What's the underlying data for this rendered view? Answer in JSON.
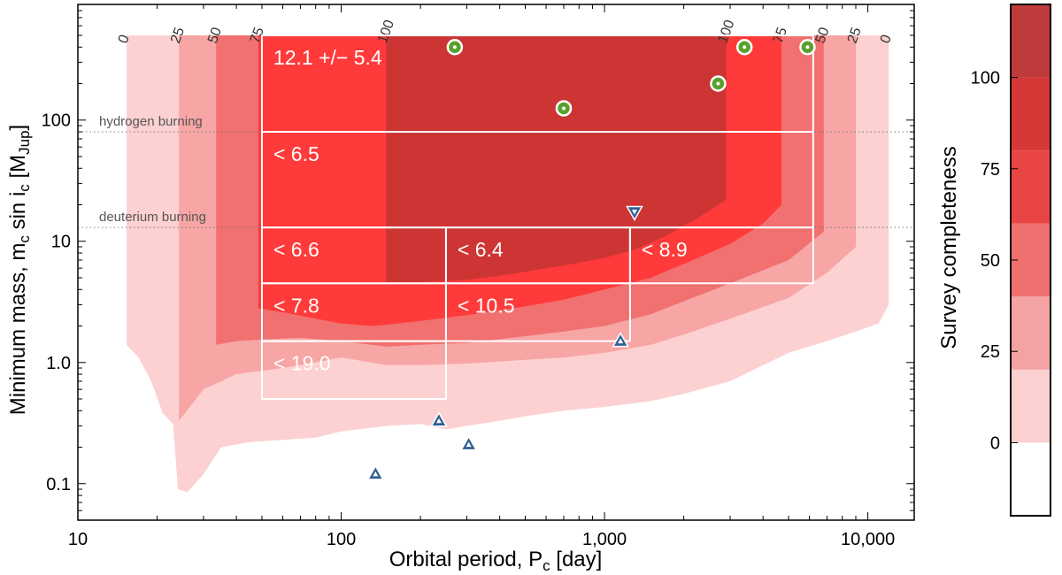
{
  "chart_data": {
    "type": "heatmap",
    "xlabel": "Orbital period, P",
    "xlabel_sub": "c",
    "xlabel_unit": " [day]",
    "ylabel": "Minimum mass, m",
    "ylabel_sub1": "c",
    "ylabel_mid": " sin i",
    "ylabel_sub2": "c",
    "ylabel_unit_open": " [M",
    "ylabel_unit_sub": "Jup",
    "ylabel_unit_close": "]",
    "x_scale": "log",
    "y_scale": "log",
    "xlim": [
      10,
      15000
    ],
    "ylim": [
      0.05,
      900
    ],
    "x_tick_labels": [
      "10",
      "100",
      "1,000",
      "10,000"
    ],
    "x_tick_values": [
      10,
      100,
      1000,
      10000
    ],
    "y_tick_labels": [
      "0.1",
      "1.0",
      "10",
      "100"
    ],
    "y_tick_values": [
      0.1,
      1,
      10,
      100
    ],
    "colorbar": {
      "label": "Survey completeness",
      "tick_labels": [
        "0",
        "25",
        "50",
        "75",
        "100"
      ],
      "tick_values": [
        0,
        25,
        50,
        75,
        100
      ],
      "range": [
        -20,
        120
      ],
      "bands": [
        {
          "from": -20,
          "to": 0,
          "color": "#ffffff"
        },
        {
          "from": 0,
          "to": 20,
          "color": "#fbd0d0"
        },
        {
          "from": 20,
          "to": 40,
          "color": "#f3a3a3"
        },
        {
          "from": 40,
          "to": 60,
          "color": "#f07070"
        },
        {
          "from": 60,
          "to": 80,
          "color": "#ea4545"
        },
        {
          "from": 80,
          "to": 100,
          "color": "#d63838"
        },
        {
          "from": 100,
          "to": 120,
          "color": "#bf3a3a"
        }
      ]
    },
    "completeness_regions": [
      {
        "level": "0",
        "color": "#fdd1d1",
        "p_min": 15.3,
        "p_max": 12000,
        "m_top": 500,
        "lower_edge": [
          [
            15.3,
            1.4
          ],
          [
            17,
            1.1
          ],
          [
            19,
            0.7
          ],
          [
            21,
            0.38
          ],
          [
            23,
            0.31
          ],
          [
            24,
            0.09
          ],
          [
            26,
            0.085
          ],
          [
            30,
            0.12
          ],
          [
            35,
            0.2
          ],
          [
            45,
            0.22
          ],
          [
            60,
            0.23
          ],
          [
            80,
            0.24
          ],
          [
            100,
            0.27
          ],
          [
            150,
            0.3
          ],
          [
            200,
            0.31
          ],
          [
            250,
            0.28
          ],
          [
            300,
            0.3
          ],
          [
            400,
            0.33
          ],
          [
            500,
            0.36
          ],
          [
            700,
            0.4
          ],
          [
            1000,
            0.43
          ],
          [
            1500,
            0.48
          ],
          [
            2000,
            0.55
          ],
          [
            3000,
            0.7
          ],
          [
            5000,
            1.2
          ],
          [
            7000,
            1.5
          ],
          [
            9000,
            1.8
          ],
          [
            11000,
            2.1
          ],
          [
            12000,
            3.0
          ]
        ]
      },
      {
        "level": "25",
        "color": "#f7a5a5",
        "p_min": 24.2,
        "p_max": 9000,
        "m_top": 500,
        "lower_edge": [
          [
            24.2,
            0.33
          ],
          [
            30,
            0.6
          ],
          [
            40,
            0.8
          ],
          [
            60,
            0.9
          ],
          [
            80,
            1.0
          ],
          [
            100,
            1.1
          ],
          [
            150,
            0.95
          ],
          [
            200,
            0.95
          ],
          [
            300,
            0.98
          ],
          [
            500,
            1.05
          ],
          [
            700,
            1.1
          ],
          [
            1000,
            1.2
          ],
          [
            1500,
            1.4
          ],
          [
            2000,
            1.7
          ],
          [
            3000,
            2.3
          ],
          [
            5000,
            3.4
          ],
          [
            7000,
            5.5
          ],
          [
            9000,
            9.0
          ]
        ]
      },
      {
        "level": "50",
        "color": "#f17070",
        "p_min": 33.5,
        "p_max": 6800,
        "m_top": 500,
        "lower_edge": [
          [
            33.5,
            1.4
          ],
          [
            40,
            1.5
          ],
          [
            50,
            1.55
          ],
          [
            70,
            1.6
          ],
          [
            100,
            1.5
          ],
          [
            150,
            1.35
          ],
          [
            200,
            1.4
          ],
          [
            300,
            1.45
          ],
          [
            500,
            1.65
          ],
          [
            700,
            1.8
          ],
          [
            1000,
            2.0
          ],
          [
            1500,
            2.5
          ],
          [
            2000,
            3.2
          ],
          [
            3000,
            4.5
          ],
          [
            5000,
            7.0
          ],
          [
            6800,
            12
          ]
        ]
      },
      {
        "level": "75",
        "color": "#ff3a3a",
        "p_min": 48.5,
        "p_max": 4700,
        "m_top": 500,
        "lower_edge": [
          [
            48.5,
            2.8
          ],
          [
            60,
            2.6
          ],
          [
            80,
            2.3
          ],
          [
            100,
            2.1
          ],
          [
            130,
            2.0
          ],
          [
            150,
            2.05
          ],
          [
            200,
            2.2
          ],
          [
            300,
            2.45
          ],
          [
            500,
            2.9
          ],
          [
            700,
            3.3
          ],
          [
            1000,
            4.0
          ],
          [
            1500,
            5.0
          ],
          [
            2000,
            6.5
          ],
          [
            3000,
            9.5
          ],
          [
            4000,
            14
          ],
          [
            4700,
            20
          ]
        ]
      },
      {
        "level": "100",
        "color": "#cd3535",
        "p_min": 148,
        "p_max": 2900,
        "m_top": 500,
        "lower_edge": [
          [
            148,
            4.5
          ],
          [
            200,
            4.6
          ],
          [
            300,
            4.8
          ],
          [
            400,
            5.2
          ],
          [
            500,
            5.6
          ],
          [
            700,
            6.3
          ],
          [
            1000,
            7.3
          ],
          [
            1300,
            8.5
          ],
          [
            1700,
            11
          ],
          [
            2200,
            15
          ],
          [
            2900,
            22
          ]
        ]
      }
    ],
    "period_markers_top": [
      {
        "label": "0",
        "x": 15.3
      },
      {
        "label": "25",
        "x": 24.2
      },
      {
        "label": "50",
        "x": 33.5
      },
      {
        "label": "75",
        "x": 48.5
      },
      {
        "label": "100",
        "x": 148
      },
      {
        "label": "100",
        "x": 2900
      },
      {
        "label": "75",
        "x": 4700
      },
      {
        "label": "50",
        "x": 6800
      },
      {
        "label": "25",
        "x": 9000
      },
      {
        "label": "0",
        "x": 12000
      }
    ],
    "reference_lines": [
      {
        "label": "hydrogen burning",
        "y": 80
      },
      {
        "label": "deuterium burning",
        "y": 13
      }
    ],
    "frequency_boxes": [
      {
        "label": "12.1 +/− 5.4",
        "x": [
          50,
          6200
        ],
        "y": [
          80,
          500
        ]
      },
      {
        "label": "< 6.5",
        "x": [
          50,
          6200
        ],
        "y": [
          13,
          80
        ]
      },
      {
        "label": "< 6.6",
        "x": [
          50,
          250
        ],
        "y": [
          4.5,
          13
        ]
      },
      {
        "label": "< 6.4",
        "x": [
          250,
          1250
        ],
        "y": [
          4.5,
          13
        ]
      },
      {
        "label": "< 8.9",
        "x": [
          1250,
          6200
        ],
        "y": [
          4.5,
          13
        ]
      },
      {
        "label": "< 7.8",
        "x": [
          50,
          250
        ],
        "y": [
          1.5,
          4.5
        ]
      },
      {
        "label": "< 10.5",
        "x": [
          250,
          1250
        ],
        "y": [
          1.5,
          4.5
        ]
      },
      {
        "label": "< 19.0",
        "x": [
          50,
          250
        ],
        "y": [
          0.5,
          1.5
        ]
      }
    ],
    "detections": [
      {
        "marker": "circle",
        "x": 270,
        "y": 400
      },
      {
        "marker": "circle",
        "x": 700,
        "y": 125
      },
      {
        "marker": "circle",
        "x": 2700,
        "y": 200
      },
      {
        "marker": "circle",
        "x": 3400,
        "y": 400
      },
      {
        "marker": "circle",
        "x": 5900,
        "y": 400
      },
      {
        "marker": "triangle-up",
        "x": 135,
        "y": 0.12
      },
      {
        "marker": "triangle-up",
        "x": 235,
        "y": 0.33
      },
      {
        "marker": "triangle-up",
        "x": 305,
        "y": 0.21
      },
      {
        "marker": "triangle-up",
        "x": 1150,
        "y": 1.5
      },
      {
        "marker": "triangle-down",
        "x": 1300,
        "y": 17.5
      }
    ],
    "colors": {
      "box_outline": "#ffffff",
      "circle_fill": "#5aa02c",
      "triangle_fill": "#2f5f95"
    }
  }
}
